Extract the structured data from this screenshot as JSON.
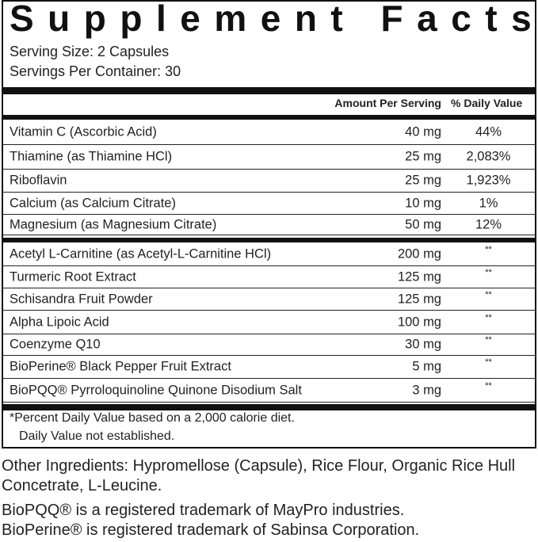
{
  "title": "Supplement Facts",
  "serving_size": "Serving Size: 2 Capsules",
  "servings_per_container": "Servings Per Container: 30",
  "headers": {
    "amount": "Amount Per Serving",
    "dv": "% Daily Value"
  },
  "vitamins": [
    {
      "name": "Vitamin C (Ascorbic Acid)",
      "amount": "40 mg",
      "dv": "44%"
    },
    {
      "name": "Thiamine (as Thiamine HCl)",
      "amount": "25 mg",
      "dv": "2,083%"
    },
    {
      "name": "Riboflavin",
      "amount": "25 mg",
      "dv": "1,923%"
    },
    {
      "name": "Calcium (as Calcium Citrate)",
      "amount": "10 mg",
      "dv": "1%"
    },
    {
      "name": "Magnesium (as Magnesium Citrate)",
      "amount": "50 mg",
      "dv": "12%"
    }
  ],
  "others": [
    {
      "name": "Acetyl L-Carnitine (as Acetyl-L-Carnitine HCl)",
      "amount": "200 mg",
      "dv": "**"
    },
    {
      "name": "Turmeric Root Extract",
      "amount": "125 mg",
      "dv": "**"
    },
    {
      "name": "Schisandra Fruit Powder",
      "amount": "125 mg",
      "dv": "**"
    },
    {
      "name": "Alpha Lipoic Acid",
      "amount": "100 mg",
      "dv": "**"
    },
    {
      "name": "Coenzyme Q10",
      "amount": "30 mg",
      "dv": "**"
    },
    {
      "name": "BioPerine® Black Pepper Fruit Extract",
      "amount": "5 mg",
      "dv": "**"
    },
    {
      "name": "BioPQQ® Pyrroloquinoline Quinone Disodium Salt",
      "amount": "3 mg",
      "dv": "**"
    }
  ],
  "footnote1": "*Percent Daily Value based on a 2,000 calorie diet.",
  "footnote2": "Daily Value not established.",
  "other_ingredients": "Other Ingredients: Hypromellose (Capsule), Rice Flour, Organic Rice Hull Concetrate, L-Leucine.",
  "trademark1": "BioPQQ® is a registered trademark of MayPro industries.",
  "trademark2": "BioPerine® is registered trademark of Sabinsa Corporation."
}
